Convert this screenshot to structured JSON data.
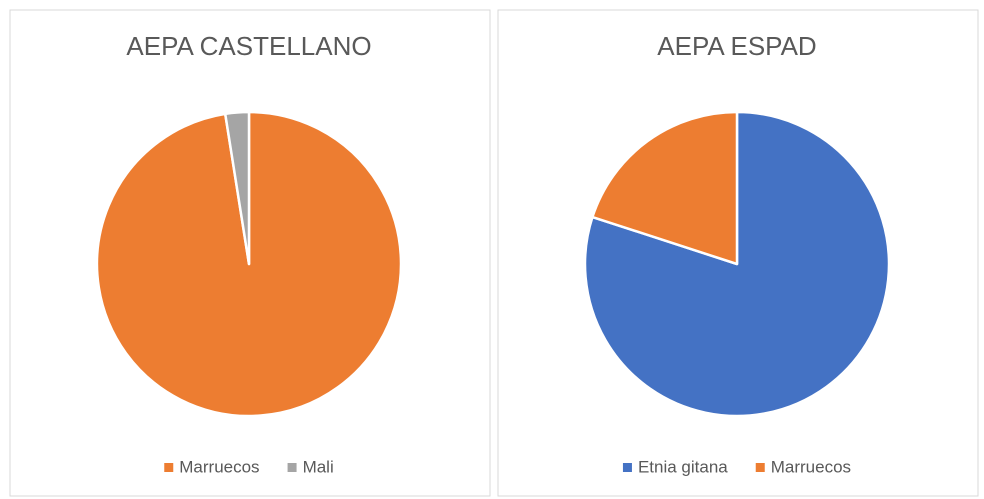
{
  "chart_data": [
    {
      "type": "pie",
      "title": "AEPA CASTELLANO",
      "categories": [
        "Marruecos",
        "Mali"
      ],
      "values": [
        97.5,
        2.5
      ],
      "colors": [
        "#ed7d31",
        "#a5a5a5"
      ],
      "legend": "bottom"
    },
    {
      "type": "pie",
      "title": "AEPA ESPAD",
      "categories": [
        "Etnia gitana",
        "Marruecos"
      ],
      "values": [
        80,
        20
      ],
      "colors": [
        "#4472c4",
        "#ed7d31"
      ],
      "legend": "bottom"
    }
  ]
}
